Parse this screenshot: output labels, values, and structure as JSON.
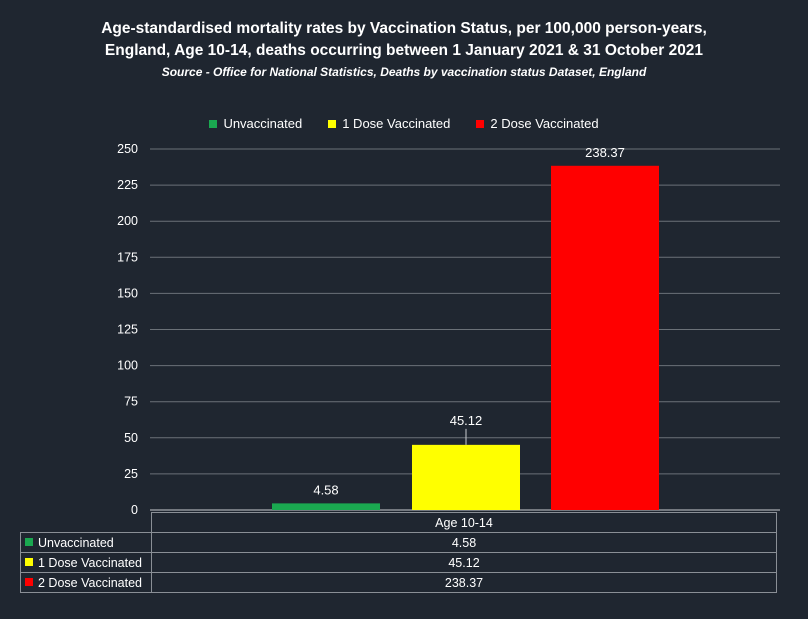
{
  "chart_data": {
    "type": "bar",
    "title": "Age-standardised mortality rates by Vaccination Status, per 100,000 person-years,",
    "title_line2": "England, Age 10-14, deaths occurring  between 1 January 2021 & 31 October 2021",
    "subtitle": "Source - Office for National Statistics, Deaths by vaccination status Dataset, England",
    "categories": [
      "Age 10-14"
    ],
    "series": [
      {
        "name": "Unvaccinated",
        "values": [
          4.58
        ],
        "labels": [
          "4.58"
        ],
        "color": "#1aa850"
      },
      {
        "name": "1 Dose Vaccinated",
        "values": [
          45.12
        ],
        "labels": [
          "45.12"
        ],
        "color": "#ffff00"
      },
      {
        "name": "2 Dose Vaccinated",
        "values": [
          238.37
        ],
        "labels": [
          "238.37"
        ],
        "color": "#ff0000"
      }
    ],
    "ylim": [
      0,
      250
    ],
    "yticks": [
      "0",
      "25",
      "50",
      "75",
      "100",
      "125",
      "150",
      "175",
      "200",
      "225",
      "250"
    ],
    "legend_position": "top",
    "grid": true,
    "data_table": true
  }
}
